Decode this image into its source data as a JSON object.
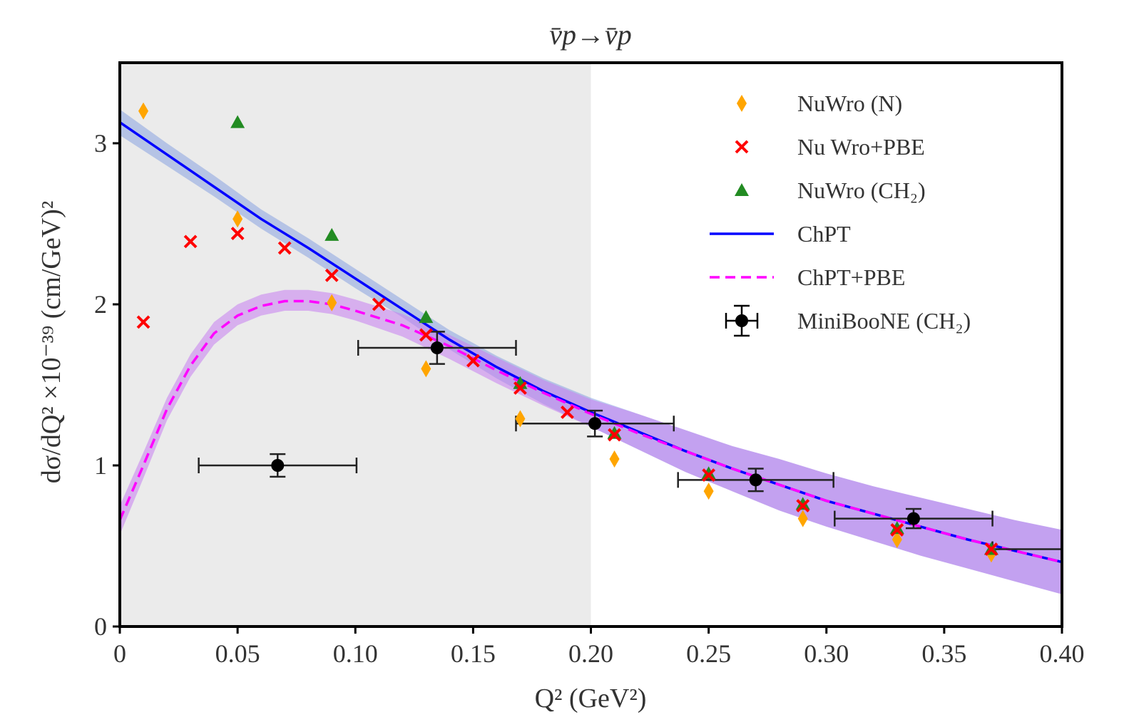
{
  "chart_data": {
    "type": "scatter",
    "title": "v̄p→v̄p",
    "xlabel": "Q² (GeV²)",
    "ylabel": "dσ/dQ² ×10⁻³⁹ (cm/GeV)²",
    "xlim": [
      0,
      0.4
    ],
    "ylim": [
      0,
      3.5
    ],
    "xticks": [
      0,
      0.05,
      0.1,
      0.15,
      0.2,
      0.25,
      0.3,
      0.35,
      0.4
    ],
    "xtick_labels": [
      "0",
      "0.05",
      "0.10",
      "0.15",
      "0.20",
      "0.25",
      "0.30",
      "0.35",
      "0.40"
    ],
    "yticks": [
      0,
      1,
      2,
      3
    ],
    "ytick_labels": [
      "0",
      "1",
      "2",
      "3"
    ],
    "grid": false,
    "shaded_region": {
      "x": [
        0,
        0.2
      ],
      "color": "#ebebeb"
    },
    "legend": {
      "placement": "top-right",
      "entries": [
        {
          "label": "NuWro (N)",
          "marker": "diamond",
          "color": "#ffa500"
        },
        {
          "label": "Nu Wro+PBE",
          "marker": "x",
          "color": "#ff0000"
        },
        {
          "label": "NuWro (CH₂)",
          "marker": "triangle",
          "color": "#228b22"
        },
        {
          "label": "ChPT",
          "marker": "line",
          "color": "#0000ff"
        },
        {
          "label": "ChPT+PBE",
          "marker": "dashed",
          "color": "#ff00ff"
        },
        {
          "label": "MiniBooNE (CH₂)",
          "marker": "errorbar",
          "color": "#000000"
        }
      ]
    },
    "series": [
      {
        "name": "ChPT",
        "kind": "line",
        "color": "#0000ff",
        "band_color": "#a9bbe8",
        "x": [
          0,
          0.02,
          0.04,
          0.06,
          0.08,
          0.1,
          0.12,
          0.14,
          0.16,
          0.18,
          0.2,
          0.22,
          0.24,
          0.26,
          0.28,
          0.3,
          0.32,
          0.34,
          0.36,
          0.38,
          0.4
        ],
        "y": [
          3.13,
          2.93,
          2.73,
          2.53,
          2.35,
          2.16,
          1.97,
          1.78,
          1.61,
          1.46,
          1.33,
          1.21,
          1.09,
          0.98,
          0.88,
          0.78,
          0.7,
          0.62,
          0.54,
          0.47,
          0.4
        ],
        "band_lower": [
          3.05,
          2.86,
          2.67,
          2.47,
          2.29,
          2.1,
          1.92,
          1.72,
          1.54,
          1.38,
          1.24,
          1.1,
          0.96,
          0.84,
          0.72,
          0.62,
          0.53,
          0.44,
          0.36,
          0.28,
          0.2
        ],
        "band_upper": [
          3.21,
          3.0,
          2.8,
          2.59,
          2.41,
          2.22,
          2.03,
          1.84,
          1.68,
          1.54,
          1.42,
          1.32,
          1.22,
          1.12,
          1.04,
          0.95,
          0.87,
          0.8,
          0.73,
          0.66,
          0.6
        ]
      },
      {
        "name": "ChPT+PBE",
        "kind": "dashed-line",
        "color": "#ff00ff",
        "band_color": "#f0b4ee",
        "x": [
          0,
          0.01,
          0.02,
          0.03,
          0.04,
          0.05,
          0.06,
          0.07,
          0.08,
          0.09,
          0.1,
          0.12,
          0.14,
          0.16,
          0.18,
          0.2,
          0.22,
          0.24,
          0.26,
          0.28,
          0.3,
          0.32,
          0.34,
          0.36,
          0.38,
          0.4
        ],
        "y": [
          0.66,
          1.0,
          1.35,
          1.62,
          1.82,
          1.93,
          1.99,
          2.02,
          2.02,
          2.0,
          1.96,
          1.87,
          1.74,
          1.59,
          1.45,
          1.32,
          1.2,
          1.09,
          0.98,
          0.88,
          0.78,
          0.7,
          0.62,
          0.54,
          0.47,
          0.4
        ],
        "band_lower": [
          0.57,
          0.92,
          1.28,
          1.55,
          1.75,
          1.87,
          1.93,
          1.96,
          1.96,
          1.94,
          1.9,
          1.8,
          1.66,
          1.51,
          1.37,
          1.24,
          1.1,
          0.96,
          0.84,
          0.72,
          0.62,
          0.53,
          0.44,
          0.36,
          0.28,
          0.2
        ],
        "band_upper": [
          0.75,
          1.08,
          1.42,
          1.69,
          1.89,
          2.0,
          2.06,
          2.09,
          2.09,
          2.07,
          2.03,
          1.94,
          1.81,
          1.67,
          1.53,
          1.41,
          1.32,
          1.22,
          1.12,
          1.04,
          0.95,
          0.87,
          0.8,
          0.73,
          0.66,
          0.6
        ]
      },
      {
        "name": "NuWro (N)",
        "kind": "scatter",
        "marker": "diamond",
        "color": "#ffa500",
        "x": [
          0.01,
          0.05,
          0.09,
          0.13,
          0.17,
          0.21,
          0.25,
          0.29,
          0.33,
          0.37
        ],
        "y": [
          3.2,
          2.53,
          2.01,
          1.6,
          1.29,
          1.04,
          0.84,
          0.67,
          0.54,
          0.45
        ]
      },
      {
        "name": "NuWro (CH₂)",
        "kind": "scatter",
        "marker": "triangle",
        "color": "#228b22",
        "x": [
          0.05,
          0.09,
          0.13,
          0.17,
          0.21,
          0.25,
          0.29,
          0.33,
          0.37
        ],
        "y": [
          3.13,
          2.43,
          1.92,
          1.51,
          1.2,
          0.95,
          0.76,
          0.61,
          0.48
        ]
      },
      {
        "name": "Nu Wro+PBE",
        "kind": "scatter",
        "marker": "x",
        "color": "#ff0000",
        "x": [
          0.01,
          0.03,
          0.05,
          0.07,
          0.09,
          0.11,
          0.13,
          0.15,
          0.17,
          0.19,
          0.21,
          0.25,
          0.29,
          0.33,
          0.37
        ],
        "y": [
          1.89,
          2.39,
          2.44,
          2.35,
          2.18,
          2.0,
          1.81,
          1.65,
          1.48,
          1.33,
          1.19,
          0.94,
          0.75,
          0.6,
          0.48
        ]
      },
      {
        "name": "MiniBooNE (CH₂)",
        "kind": "errorbar",
        "color": "#000000",
        "x": [
          0.067,
          0.1347,
          0.2017,
          0.27,
          0.337,
          0.404
        ],
        "y": [
          1.0,
          1.73,
          1.26,
          0.91,
          0.67,
          0.48
        ],
        "xerr": [
          0.0335,
          0.0335,
          0.0335,
          0.033,
          0.0335,
          0.0335
        ],
        "yerr": [
          0.07,
          0.1,
          0.08,
          0.07,
          0.06,
          0.05
        ]
      }
    ]
  }
}
